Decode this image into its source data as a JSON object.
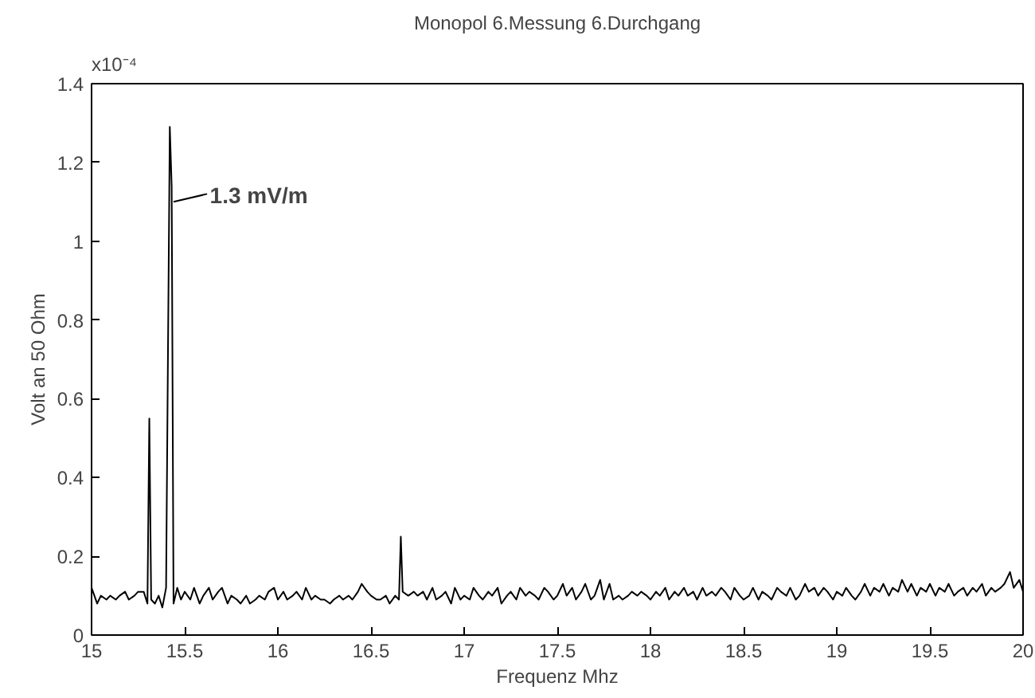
{
  "chart_data": {
    "type": "line",
    "title": "Monopol 6.Messung 6.Durchgang",
    "xlabel": "Frequenz Mhz",
    "ylabel": "Volt an 50 Ohm",
    "annotations": [
      "x10⁻⁴",
      {
        "text": "1.3  mV/m",
        "x": 15.43,
        "y": 1.1
      }
    ],
    "xlim": [
      15,
      20
    ],
    "xticks": [
      15,
      15.5,
      16,
      16.5,
      17,
      17.5,
      18,
      18.5,
      19,
      19.5,
      20
    ],
    "ylim": [
      0,
      1.4
    ],
    "yticks": [
      0,
      0.2,
      0.4,
      0.6,
      0.8,
      1,
      1.2,
      1.4
    ],
    "grid": false,
    "marker": "none",
    "line_style": "solid",
    "series": [
      {
        "color": "#000000",
        "x": [
          15.0,
          15.03,
          15.05,
          15.08,
          15.1,
          15.13,
          15.15,
          15.18,
          15.2,
          15.23,
          15.25,
          15.28,
          15.3,
          15.31,
          15.32,
          15.34,
          15.36,
          15.38,
          15.4,
          15.42,
          15.43,
          15.44,
          15.46,
          15.48,
          15.5,
          15.53,
          15.55,
          15.58,
          15.6,
          15.63,
          15.65,
          15.68,
          15.7,
          15.73,
          15.75,
          15.78,
          15.8,
          15.83,
          15.85,
          15.88,
          15.9,
          15.93,
          15.95,
          15.98,
          16.0,
          16.03,
          16.05,
          16.08,
          16.1,
          16.13,
          16.15,
          16.18,
          16.2,
          16.23,
          16.25,
          16.28,
          16.3,
          16.33,
          16.35,
          16.38,
          16.4,
          16.43,
          16.45,
          16.48,
          16.5,
          16.53,
          16.55,
          16.58,
          16.6,
          16.63,
          16.65,
          16.66,
          16.67,
          16.7,
          16.73,
          16.75,
          16.78,
          16.8,
          16.83,
          16.85,
          16.88,
          16.9,
          16.93,
          16.95,
          16.98,
          17.0,
          17.03,
          17.05,
          17.08,
          17.1,
          17.13,
          17.15,
          17.18,
          17.2,
          17.23,
          17.25,
          17.28,
          17.3,
          17.33,
          17.35,
          17.38,
          17.4,
          17.43,
          17.45,
          17.48,
          17.5,
          17.53,
          17.55,
          17.58,
          17.6,
          17.63,
          17.65,
          17.68,
          17.7,
          17.73,
          17.75,
          17.78,
          17.8,
          17.83,
          17.85,
          17.88,
          17.9,
          17.93,
          17.95,
          17.98,
          18.0,
          18.03,
          18.05,
          18.08,
          18.1,
          18.13,
          18.15,
          18.18,
          18.2,
          18.23,
          18.25,
          18.28,
          18.3,
          18.33,
          18.35,
          18.38,
          18.4,
          18.43,
          18.45,
          18.48,
          18.5,
          18.53,
          18.55,
          18.58,
          18.6,
          18.63,
          18.65,
          18.68,
          18.7,
          18.73,
          18.75,
          18.78,
          18.8,
          18.83,
          18.85,
          18.88,
          18.9,
          18.93,
          18.95,
          18.98,
          19.0,
          19.03,
          19.05,
          19.08,
          19.1,
          19.13,
          19.15,
          19.18,
          19.2,
          19.23,
          19.25,
          19.28,
          19.3,
          19.33,
          19.35,
          19.38,
          19.4,
          19.43,
          19.45,
          19.48,
          19.5,
          19.53,
          19.55,
          19.58,
          19.6,
          19.63,
          19.65,
          19.68,
          19.7,
          19.73,
          19.75,
          19.78,
          19.8,
          19.83,
          19.85,
          19.88,
          19.9,
          19.93,
          19.95,
          19.98,
          20.0
        ],
        "values": [
          0.12,
          0.08,
          0.1,
          0.09,
          0.1,
          0.09,
          0.1,
          0.11,
          0.09,
          0.1,
          0.11,
          0.11,
          0.08,
          0.55,
          0.09,
          0.08,
          0.1,
          0.07,
          0.12,
          1.29,
          1.14,
          0.08,
          0.12,
          0.09,
          0.11,
          0.09,
          0.12,
          0.08,
          0.1,
          0.12,
          0.09,
          0.11,
          0.12,
          0.08,
          0.1,
          0.09,
          0.08,
          0.1,
          0.08,
          0.09,
          0.1,
          0.09,
          0.11,
          0.12,
          0.09,
          0.11,
          0.09,
          0.1,
          0.11,
          0.09,
          0.12,
          0.09,
          0.1,
          0.09,
          0.09,
          0.08,
          0.09,
          0.1,
          0.09,
          0.1,
          0.09,
          0.11,
          0.13,
          0.11,
          0.1,
          0.09,
          0.09,
          0.1,
          0.08,
          0.1,
          0.09,
          0.25,
          0.11,
          0.1,
          0.11,
          0.1,
          0.11,
          0.09,
          0.12,
          0.09,
          0.1,
          0.11,
          0.08,
          0.12,
          0.09,
          0.1,
          0.09,
          0.12,
          0.1,
          0.09,
          0.11,
          0.1,
          0.12,
          0.08,
          0.1,
          0.11,
          0.09,
          0.12,
          0.1,
          0.11,
          0.1,
          0.09,
          0.12,
          0.11,
          0.09,
          0.1,
          0.13,
          0.1,
          0.12,
          0.09,
          0.11,
          0.13,
          0.09,
          0.1,
          0.14,
          0.09,
          0.13,
          0.09,
          0.1,
          0.09,
          0.1,
          0.11,
          0.1,
          0.11,
          0.1,
          0.09,
          0.11,
          0.1,
          0.12,
          0.09,
          0.11,
          0.1,
          0.12,
          0.1,
          0.11,
          0.09,
          0.12,
          0.1,
          0.11,
          0.1,
          0.12,
          0.11,
          0.09,
          0.12,
          0.1,
          0.09,
          0.1,
          0.12,
          0.09,
          0.11,
          0.1,
          0.09,
          0.12,
          0.11,
          0.1,
          0.12,
          0.09,
          0.1,
          0.13,
          0.11,
          0.12,
          0.1,
          0.12,
          0.11,
          0.09,
          0.11,
          0.1,
          0.12,
          0.1,
          0.09,
          0.11,
          0.13,
          0.1,
          0.12,
          0.11,
          0.13,
          0.1,
          0.12,
          0.11,
          0.14,
          0.11,
          0.13,
          0.1,
          0.12,
          0.11,
          0.13,
          0.1,
          0.12,
          0.11,
          0.13,
          0.1,
          0.11,
          0.12,
          0.1,
          0.12,
          0.11,
          0.13,
          0.1,
          0.12,
          0.11,
          0.12,
          0.13,
          0.16,
          0.12,
          0.14,
          0.11
        ]
      }
    ]
  }
}
